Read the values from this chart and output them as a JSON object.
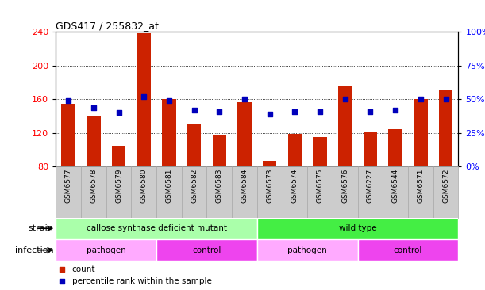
{
  "title": "GDS417 / 255832_at",
  "samples": [
    "GSM6577",
    "GSM6578",
    "GSM6579",
    "GSM6580",
    "GSM6581",
    "GSM6582",
    "GSM6583",
    "GSM6584",
    "GSM6573",
    "GSM6574",
    "GSM6575",
    "GSM6576",
    "GSM6227",
    "GSM6544",
    "GSM6571",
    "GSM6572"
  ],
  "counts": [
    155,
    140,
    105,
    238,
    160,
    130,
    117,
    157,
    87,
    119,
    115,
    175,
    121,
    125,
    160,
    172
  ],
  "percentiles": [
    49,
    44,
    40,
    52,
    49,
    42,
    41,
    50,
    39,
    41,
    41,
    50,
    41,
    42,
    50,
    50
  ],
  "ylim_left": [
    80,
    240
  ],
  "ylim_right": [
    0,
    100
  ],
  "yticks_left": [
    80,
    120,
    160,
    200,
    240
  ],
  "yticks_right": [
    0,
    25,
    50,
    75,
    100
  ],
  "bar_color": "#cc2200",
  "dot_color": "#0000bb",
  "strain_groups": [
    {
      "label": "callose synthase deficient mutant",
      "start": 0,
      "end": 8,
      "color": "#aaffaa"
    },
    {
      "label": "wild type",
      "start": 8,
      "end": 16,
      "color": "#44ee44"
    }
  ],
  "infection_groups": [
    {
      "label": "pathogen",
      "start": 0,
      "end": 4,
      "color": "#ffaaff"
    },
    {
      "label": "control",
      "start": 4,
      "end": 8,
      "color": "#ee44ee"
    },
    {
      "label": "pathogen",
      "start": 8,
      "end": 12,
      "color": "#ffaaff"
    },
    {
      "label": "control",
      "start": 12,
      "end": 16,
      "color": "#ee44ee"
    }
  ],
  "legend_items": [
    {
      "label": "count",
      "color": "#cc2200"
    },
    {
      "label": "percentile rank within the sample",
      "color": "#0000bb"
    }
  ],
  "strain_label": "strain",
  "infection_label": "infection",
  "xlabel_bg": "#cccccc",
  "sample_cell_border": "#aaaaaa"
}
